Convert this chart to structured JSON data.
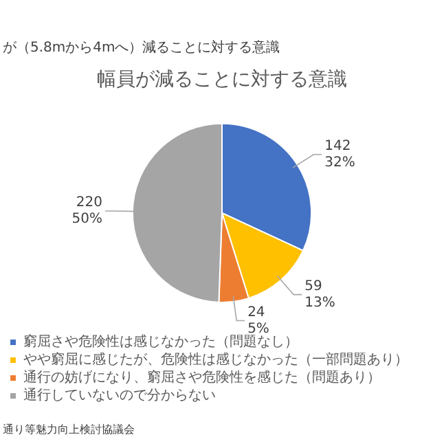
{
  "chart_data": {
    "type": "pie",
    "title": "幅員が減ることに対する意識",
    "subtitle": "が（5.8mから4mへ）減ることに対する意識",
    "categories": [
      "窮屈さや危険性は感じなかった（問題なし）",
      "やや窮屈に感じたが、危険性は感じなかった（一部問題あり）",
      "通行の妨げになり、窮屈さや危険性を感じた（問題あり）",
      "通行していないので分からない"
    ],
    "values": [
      142,
      59,
      24,
      220
    ],
    "colors": [
      "#4472c4",
      "#ffc000",
      "#ed7d31",
      "#a5a5a5"
    ],
    "value_labels": [
      "142\n32%",
      "59\n13%",
      "24\n5%",
      "220\n50%"
    ],
    "legend": "bottom",
    "annotations": [
      "通り等魅力向上検討協議会"
    ]
  }
}
